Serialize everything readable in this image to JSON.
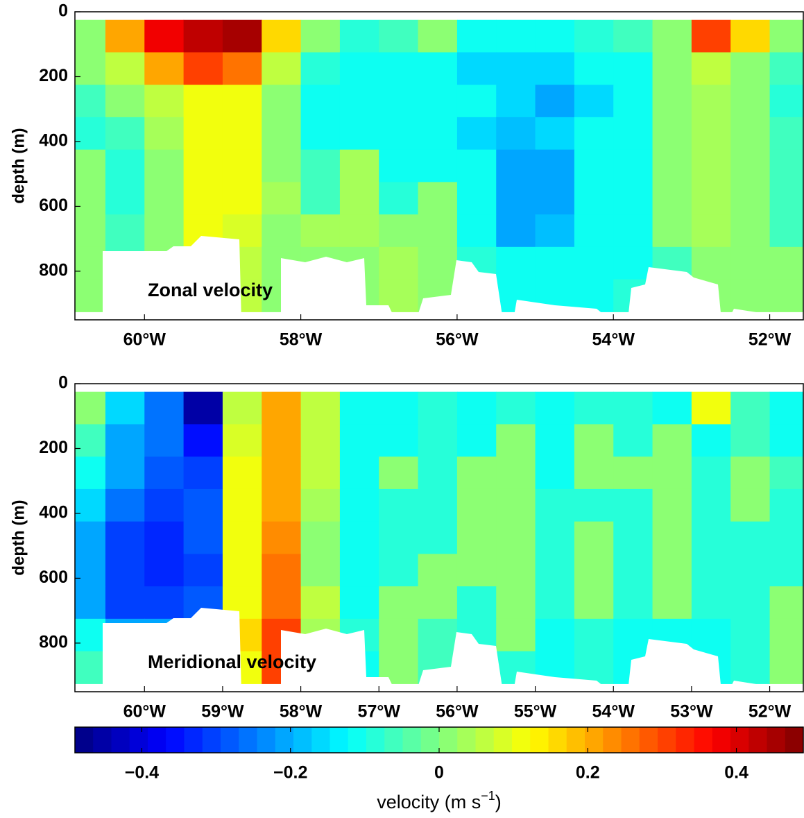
{
  "chart_data": [
    {
      "type": "contour",
      "annotation": "Zonal velocity",
      "ylabel": "depth (m)",
      "x": [
        -60.75,
        -60.25,
        -59.75,
        -59.25,
        -58.75,
        -58.25,
        -57.75,
        -57.25,
        -56.75,
        -56.25,
        -55.75,
        -55.25,
        -54.75,
        -54.25,
        -53.75,
        -53.25,
        -52.75,
        -52.25,
        -51.75
      ],
      "y": [
        75,
        175,
        275,
        375,
        475,
        575,
        675,
        775,
        875
      ],
      "z": [
        [
          0.02,
          0.2,
          0.38,
          0.42,
          0.45,
          0.15,
          0.02,
          -0.08,
          -0.05,
          0.02,
          -0.1,
          -0.1,
          -0.1,
          -0.08,
          -0.05,
          0.02,
          0.3,
          0.15,
          0.02
        ],
        [
          0.0,
          0.05,
          0.2,
          0.3,
          0.25,
          0.05,
          -0.08,
          -0.1,
          -0.1,
          -0.1,
          -0.15,
          -0.15,
          -0.15,
          -0.12,
          -0.1,
          0.0,
          0.05,
          0.0,
          -0.05
        ],
        [
          -0.05,
          0.0,
          0.05,
          0.12,
          0.12,
          0.0,
          -0.1,
          -0.1,
          -0.1,
          -0.1,
          -0.12,
          -0.15,
          -0.2,
          -0.15,
          -0.1,
          0.02,
          0.03,
          0.02,
          -0.08
        ],
        [
          -0.08,
          -0.05,
          0.03,
          0.12,
          0.12,
          0.0,
          -0.1,
          -0.1,
          -0.1,
          -0.1,
          -0.15,
          -0.18,
          -0.15,
          -0.12,
          -0.1,
          0.02,
          0.03,
          0.02,
          -0.05
        ],
        [
          0.02,
          -0.08,
          0.02,
          0.1,
          0.12,
          0.02,
          -0.05,
          0.03,
          -0.1,
          -0.1,
          -0.12,
          -0.2,
          -0.2,
          -0.1,
          -0.1,
          0.02,
          0.03,
          0.02,
          -0.05
        ],
        [
          0.02,
          -0.08,
          0.0,
          0.1,
          0.12,
          0.03,
          -0.05,
          0.03,
          -0.08,
          0.02,
          -0.1,
          -0.2,
          -0.2,
          -0.1,
          -0.1,
          0.02,
          0.03,
          0.0,
          -0.05
        ],
        [
          0.02,
          -0.05,
          0.0,
          0.1,
          0.08,
          0.02,
          0.03,
          0.03,
          0.02,
          0.02,
          -0.1,
          -0.2,
          -0.18,
          -0.1,
          -0.1,
          0.0,
          0.03,
          0.0,
          -0.05
        ],
        [
          0.02,
          -0.05,
          0.0,
          0.15,
          0.05,
          0.02,
          0.02,
          0.0,
          0.03,
          0.02,
          -0.08,
          -0.12,
          -0.1,
          -0.1,
          -0.1,
          -0.05,
          0.02,
          0.02,
          0.0
        ],
        [
          0.0,
          -0.1,
          0.0,
          0.1,
          0.05,
          0.0,
          -0.05,
          0.02,
          0.03,
          0.02,
          -0.1,
          -0.1,
          -0.1,
          -0.1,
          -0.08,
          -0.05,
          0.0,
          0.02,
          0.0
        ]
      ],
      "xlim": [
        -60.89,
        -51.57
      ],
      "ylim": [
        0,
        950
      ],
      "xticks": [
        {
          "value": -60,
          "label": "60°W"
        },
        {
          "value": -58,
          "label": "58°W"
        },
        {
          "value": -56,
          "label": "56°W"
        },
        {
          "value": -54,
          "label": "54°W"
        },
        {
          "value": -52,
          "label": "52°W"
        }
      ],
      "yticks": [
        0,
        200,
        400,
        600,
        800
      ]
    },
    {
      "type": "contour",
      "annotation": "Meridional velocity",
      "ylabel": "depth (m)",
      "x": [
        -60.75,
        -60.25,
        -59.75,
        -59.25,
        -58.75,
        -58.25,
        -57.75,
        -57.25,
        -56.75,
        -56.25,
        -55.75,
        -55.25,
        -54.75,
        -54.25,
        -53.75,
        -53.25,
        -52.75,
        -52.25,
        -51.75
      ],
      "y": [
        75,
        175,
        275,
        375,
        475,
        575,
        675,
        775,
        875
      ],
      "z": [
        [
          0.0,
          -0.15,
          -0.25,
          -0.45,
          0.05,
          0.2,
          0.05,
          -0.1,
          -0.1,
          -0.08,
          -0.1,
          -0.08,
          -0.1,
          -0.08,
          -0.08,
          -0.1,
          0.1,
          -0.05,
          -0.1
        ],
        [
          -0.05,
          -0.2,
          -0.25,
          -0.35,
          0.08,
          0.22,
          0.05,
          -0.1,
          -0.1,
          -0.08,
          -0.1,
          0.02,
          -0.1,
          0.02,
          -0.08,
          0.02,
          -0.1,
          -0.05,
          -0.1
        ],
        [
          -0.1,
          -0.2,
          -0.28,
          -0.3,
          0.1,
          0.22,
          0.05,
          -0.1,
          0.02,
          -0.08,
          0.02,
          0.02,
          -0.1,
          0.02,
          0.02,
          0.02,
          -0.08,
          0.02,
          -0.05
        ],
        [
          -0.15,
          -0.25,
          -0.3,
          -0.28,
          0.1,
          0.22,
          0.03,
          -0.1,
          -0.08,
          -0.08,
          0.02,
          0.02,
          -0.08,
          -0.08,
          -0.08,
          0.02,
          -0.08,
          0.02,
          -0.08
        ],
        [
          -0.2,
          -0.3,
          -0.32,
          -0.28,
          0.12,
          0.24,
          0.02,
          -0.1,
          -0.08,
          -0.08,
          0.02,
          0.02,
          -0.08,
          0.02,
          -0.08,
          0.02,
          -0.08,
          -0.08,
          -0.08
        ],
        [
          -0.2,
          -0.3,
          -0.32,
          -0.3,
          0.12,
          0.25,
          0.02,
          -0.1,
          -0.08,
          0.02,
          0.02,
          0.02,
          -0.08,
          0.02,
          -0.08,
          0.02,
          -0.08,
          -0.08,
          -0.08
        ],
        [
          -0.2,
          -0.3,
          -0.3,
          -0.28,
          0.12,
          0.25,
          0.05,
          -0.1,
          0.02,
          0.02,
          -0.08,
          0.02,
          -0.08,
          0.02,
          -0.08,
          0.02,
          -0.08,
          -0.08,
          0.02
        ],
        [
          -0.1,
          -0.2,
          -0.2,
          -0.15,
          0.15,
          0.3,
          0.03,
          -0.08,
          0.02,
          -0.05,
          -0.08,
          0.02,
          -0.1,
          -0.08,
          -0.1,
          -0.1,
          -0.1,
          -0.08,
          0.02
        ],
        [
          -0.05,
          -0.1,
          -0.1,
          -0.08,
          0.1,
          0.3,
          0.0,
          -0.1,
          0.02,
          -0.05,
          -0.1,
          -0.08,
          -0.1,
          -0.08,
          -0.1,
          -0.1,
          -0.1,
          -0.08,
          0.0
        ]
      ],
      "xlim": [
        -60.89,
        -51.57
      ],
      "ylim": [
        0,
        950
      ],
      "xticks": [
        {
          "value": -60,
          "label": "60°W"
        },
        {
          "value": -59,
          "label": "59°W"
        },
        {
          "value": -58,
          "label": "58°W"
        },
        {
          "value": -57,
          "label": "57°W"
        },
        {
          "value": -56,
          "label": "56°W"
        },
        {
          "value": -55,
          "label": "55°W"
        },
        {
          "value": -54,
          "label": "54°W"
        },
        {
          "value": -53,
          "label": "53°W"
        },
        {
          "value": -52,
          "label": "52°W"
        }
      ],
      "yticks": [
        0,
        200,
        400,
        600,
        800
      ]
    }
  ],
  "colorbar": {
    "colormap": "jet",
    "clim": [
      -0.49,
      0.49
    ],
    "ticks": [
      {
        "value": -0.4,
        "label": "−0.4"
      },
      {
        "value": -0.2,
        "label": "−0.2"
      },
      0,
      0.2,
      0.4
    ],
    "label": [
      "velocity (m s",
      "−1",
      ")"
    ]
  }
}
